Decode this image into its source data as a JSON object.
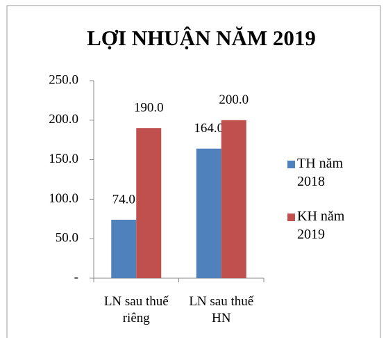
{
  "chart_data": {
    "type": "bar",
    "title": "LỢI NHUẬN NĂM 2019",
    "categories": [
      "LN sau thuế riêng",
      "LN sau thuế HN"
    ],
    "series": [
      {
        "name": "TH năm 2018",
        "color": "#4f81bd",
        "values": [
          74,
          164
        ],
        "value_labels": [
          "74.0",
          "164.0"
        ]
      },
      {
        "name": "KH năm 2019",
        "color": "#c0504d",
        "values": [
          190,
          200
        ],
        "value_labels": [
          "190.0",
          "200.0"
        ]
      }
    ],
    "ylim": [
      0,
      250
    ],
    "yticks": [
      {
        "value": 0,
        "label": "-"
      },
      {
        "value": 50,
        "label": "50.0"
      },
      {
        "value": 100,
        "label": "100.0"
      },
      {
        "value": 150,
        "label": "150.0"
      },
      {
        "value": 200,
        "label": "200.0"
      },
      {
        "value": 250,
        "label": "250.0"
      }
    ],
    "legend": "right"
  }
}
